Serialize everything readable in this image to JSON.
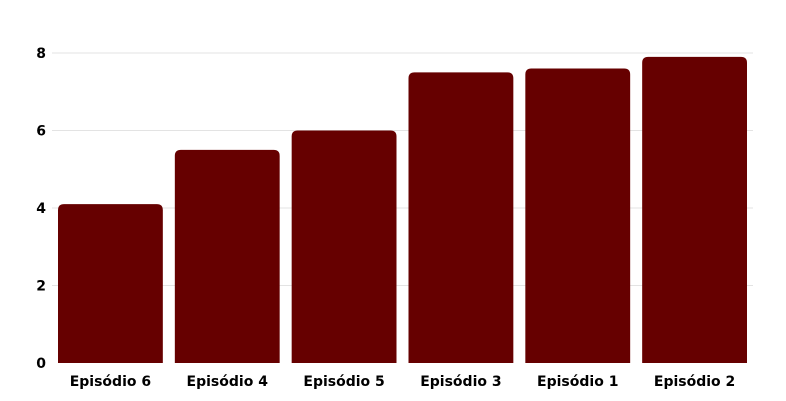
{
  "chart_data": {
    "type": "bar",
    "categories": [
      "Episódio 6",
      "Episódio 4",
      "Episódio 5",
      "Episódio 3",
      "Episódio 1",
      "Episódio 2"
    ],
    "values": [
      4.1,
      5.5,
      6.0,
      7.5,
      7.6,
      7.9
    ],
    "ylim": [
      0,
      8
    ],
    "yticks": [
      0,
      2,
      4,
      6,
      8
    ],
    "ytick_labels": [
      "0",
      "2",
      "4",
      "6",
      "8"
    ],
    "grid": true,
    "bar_color": "#660000",
    "title": "",
    "xlabel": "",
    "ylabel": ""
  }
}
